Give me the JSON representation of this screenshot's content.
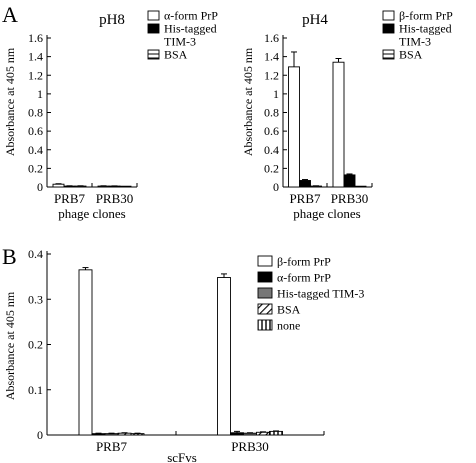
{
  "chart_data": [
    {
      "panel": "A",
      "type": "bar",
      "title": "pH8",
      "xlabel": "phage clones",
      "ylabel": "Absorbance at 405 nm",
      "ylim": [
        0,
        1.6
      ],
      "yticks": [
        "0",
        "0.2",
        "0.4",
        "0.6",
        "0.8",
        "1",
        "1.2",
        "1.4",
        "1.6"
      ],
      "categories": [
        "PRB7",
        "PRB30"
      ],
      "legend_position": "top-right",
      "series": [
        {
          "name": "α-form PrP",
          "pattern": "open",
          "values": [
            0.03,
            0.01
          ],
          "errors": [
            0.005,
            0.003
          ]
        },
        {
          "name": "His-tagged TIM-3",
          "pattern": "filled",
          "values": [
            0.01,
            0.01
          ],
          "errors": [
            0.003,
            0.002
          ]
        },
        {
          "name": "BSA",
          "pattern": "hstripe",
          "values": [
            0.01,
            0.0
          ],
          "errors": [
            0.003,
            0.002
          ]
        }
      ]
    },
    {
      "panel": "",
      "type": "bar",
      "title": "pH4",
      "xlabel": "phage clones",
      "ylabel": "Absorbance at 405 nm",
      "ylim": [
        0,
        1.6
      ],
      "yticks": [
        "0",
        "0.2",
        "0.4",
        "0.6",
        "0.8",
        "1",
        "1.2",
        "1.4",
        "1.6"
      ],
      "categories": [
        "PRB7",
        "PRB30"
      ],
      "legend_position": "top-right",
      "series": [
        {
          "name": "β-form PrP",
          "pattern": "open",
          "values": [
            1.29,
            1.34
          ],
          "errors": [
            0.16,
            0.04
          ]
        },
        {
          "name": "His-tagged TIM-3",
          "pattern": "filled",
          "values": [
            0.07,
            0.13
          ],
          "errors": [
            0.01,
            0.01
          ]
        },
        {
          "name": "BSA",
          "pattern": "hstripe",
          "values": [
            0.01,
            0.0
          ],
          "errors": [
            0.003,
            0.002
          ]
        }
      ]
    },
    {
      "panel": "B",
      "type": "bar",
      "title": "",
      "xlabel": "scFvs",
      "ylabel": "Absorbance at 405 nm",
      "ylim": [
        0,
        0.4
      ],
      "yticks": [
        "0",
        "0.1",
        "0.2",
        "0.3",
        "0.4"
      ],
      "categories": [
        "PRB7",
        "PRB30"
      ],
      "legend_position": "top-right",
      "series": [
        {
          "name": "β-form PrP",
          "pattern": "open",
          "values": [
            0.365,
            0.348
          ],
          "errors": [
            0.005,
            0.008
          ]
        },
        {
          "name": "α-form PrP",
          "pattern": "filled",
          "values": [
            0.003,
            0.005
          ],
          "errors": [
            0.001,
            0.003
          ]
        },
        {
          "name": "His-tagged TIM-3",
          "pattern": "gray",
          "values": [
            0.003,
            0.004
          ],
          "errors": [
            0.001,
            0.001
          ]
        },
        {
          "name": "BSA",
          "pattern": "diag",
          "values": [
            0.004,
            0.006
          ],
          "errors": [
            0.001,
            0.001
          ]
        },
        {
          "name": "none",
          "pattern": "vstripe",
          "values": [
            0.003,
            0.008
          ],
          "errors": [
            0.001,
            0.001
          ]
        }
      ]
    }
  ]
}
